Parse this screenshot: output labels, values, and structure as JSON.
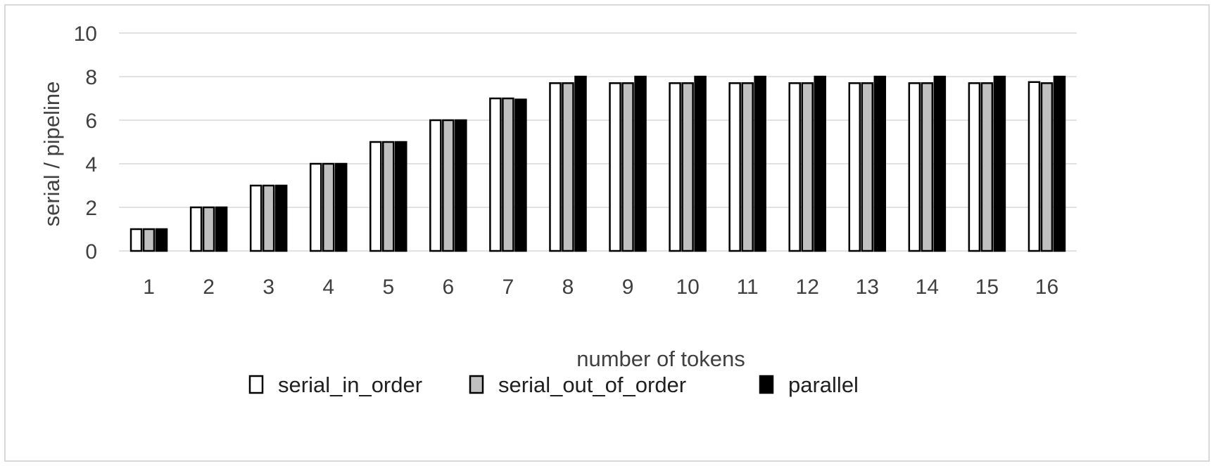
{
  "chart_data": {
    "type": "bar",
    "categories": [
      "1",
      "2",
      "3",
      "4",
      "5",
      "6",
      "7",
      "8",
      "9",
      "10",
      "11",
      "12",
      "13",
      "14",
      "15",
      "16"
    ],
    "series": [
      {
        "name": "serial_in_order",
        "color": "#ffffff",
        "values": [
          1,
          2,
          3,
          4,
          5,
          6,
          7,
          7.7,
          7.7,
          7.7,
          7.7,
          7.7,
          7.7,
          7.7,
          7.7,
          7.75
        ]
      },
      {
        "name": "serial_out_of_order",
        "color": "#c0c0c0",
        "values": [
          1,
          2,
          3,
          4,
          5,
          6,
          7,
          7.7,
          7.7,
          7.7,
          7.7,
          7.7,
          7.7,
          7.7,
          7.7,
          7.7
        ]
      },
      {
        "name": "parallel",
        "color": "#000000",
        "values": [
          1,
          2,
          3,
          4,
          5,
          6,
          6.95,
          8,
          8,
          8,
          8,
          8,
          8,
          8,
          8,
          8
        ]
      }
    ],
    "xlabel": "number of tokens",
    "ylabel": "serial / pipeline",
    "ylim": [
      0,
      10
    ],
    "yticks": [
      0,
      2,
      4,
      6,
      8,
      10
    ],
    "grid": true,
    "legend_position": "bottom"
  }
}
